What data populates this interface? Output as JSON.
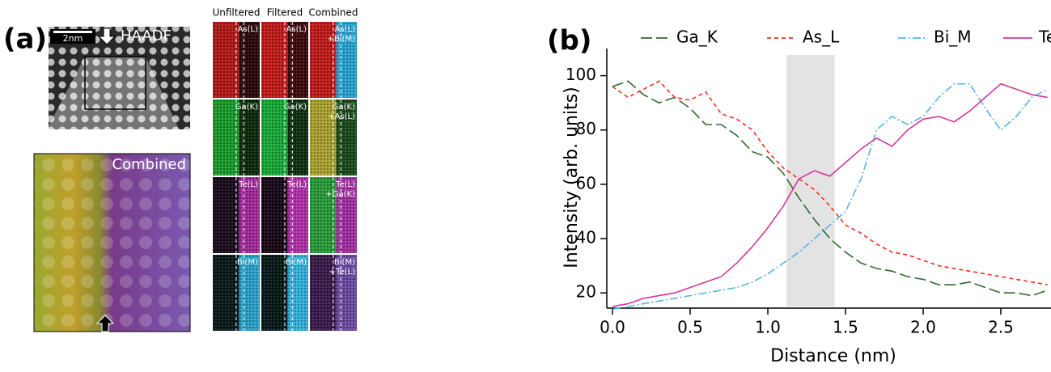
{
  "panel_a": {
    "label": "(a)",
    "scale_bar": "2nm",
    "haadf": "HAADF",
    "zoom_label": "Combined",
    "columns": [
      "Unfiltered",
      "Filtered",
      "Combined"
    ],
    "tiles": [
      [
        [
          "As(L)"
        ],
        [
          "As(L)"
        ],
        [
          "As(L)",
          "+Bi(M)"
        ]
      ],
      [
        [
          "Ga(K)"
        ],
        [
          "Ga(K)"
        ],
        [
          "Ga(K)",
          "+As(L)"
        ]
      ],
      [
        [
          "Te(L)"
        ],
        [
          "Te(L)"
        ],
        [
          "Te(L)",
          "+Ga(K)"
        ]
      ],
      [
        [
          "Bi(M)"
        ],
        [
          "Bi(M)"
        ],
        [
          "Bi(M)",
          "+Te(L)"
        ]
      ]
    ]
  },
  "chart_data": {
    "type": "line",
    "panel_label": "(b)",
    "x_label": "Distance (nm)",
    "y_label": "Intensity (arb. units)",
    "x": [
      0,
      0.1,
      0.2,
      0.3,
      0.4,
      0.5,
      0.6,
      0.7,
      0.8,
      0.9,
      1.0,
      1.1,
      1.2,
      1.3,
      1.4,
      1.5,
      1.6,
      1.7,
      1.8,
      1.9,
      2.0,
      2.1,
      2.2,
      2.3,
      2.4,
      2.5,
      2.6,
      2.7,
      2.8
    ],
    "series": [
      {
        "name": "Ga_K",
        "color": "#2e6b2e",
        "style": "long-dash",
        "values": [
          96,
          98,
          93,
          90,
          92,
          88,
          82,
          82,
          78,
          72,
          70,
          64,
          55,
          47,
          40,
          35,
          31,
          29,
          28,
          26,
          25,
          23,
          23,
          24,
          22,
          20,
          20,
          19,
          21
        ]
      },
      {
        "name": "As_L",
        "color": "#ff2a1a",
        "style": "short-dash",
        "values": [
          96,
          92,
          95,
          98,
          92,
          91,
          94,
          86,
          84,
          80,
          72,
          66,
          62,
          58,
          52,
          45,
          42,
          38,
          35,
          34,
          32,
          30,
          29,
          28,
          27,
          26,
          25,
          24,
          23
        ]
      },
      {
        "name": "Bi_M",
        "color": "#5ab4e6",
        "style": "dash-dot",
        "values": [
          14,
          15,
          16,
          17,
          18,
          19,
          20,
          21,
          22,
          24,
          27,
          31,
          35,
          40,
          45,
          50,
          62,
          80,
          85,
          82,
          85,
          92,
          97,
          97,
          88,
          80,
          85,
          92,
          95
        ]
      },
      {
        "name": "Te_LA",
        "color": "#d6359b",
        "style": "solid",
        "values": [
          15,
          16,
          18,
          19,
          20,
          22,
          24,
          26,
          31,
          37,
          44,
          52,
          62,
          65,
          63,
          68,
          73,
          77,
          74,
          80,
          84,
          85,
          83,
          87,
          92,
          97,
          95,
          93,
          92
        ]
      }
    ],
    "shaded_region": [
      1.12,
      1.43
    ],
    "xlim": [
      0,
      2.82
    ],
    "ylim": [
      15,
      110
    ],
    "xticks": [
      {
        "value": 0,
        "label": "0.0"
      },
      0.5,
      {
        "value": 1,
        "label": "1.0"
      },
      1.5,
      {
        "value": 2,
        "label": "2.0"
      },
      2.5
    ],
    "yticks": [
      20,
      40,
      60,
      80,
      100
    ],
    "legend": "top"
  }
}
